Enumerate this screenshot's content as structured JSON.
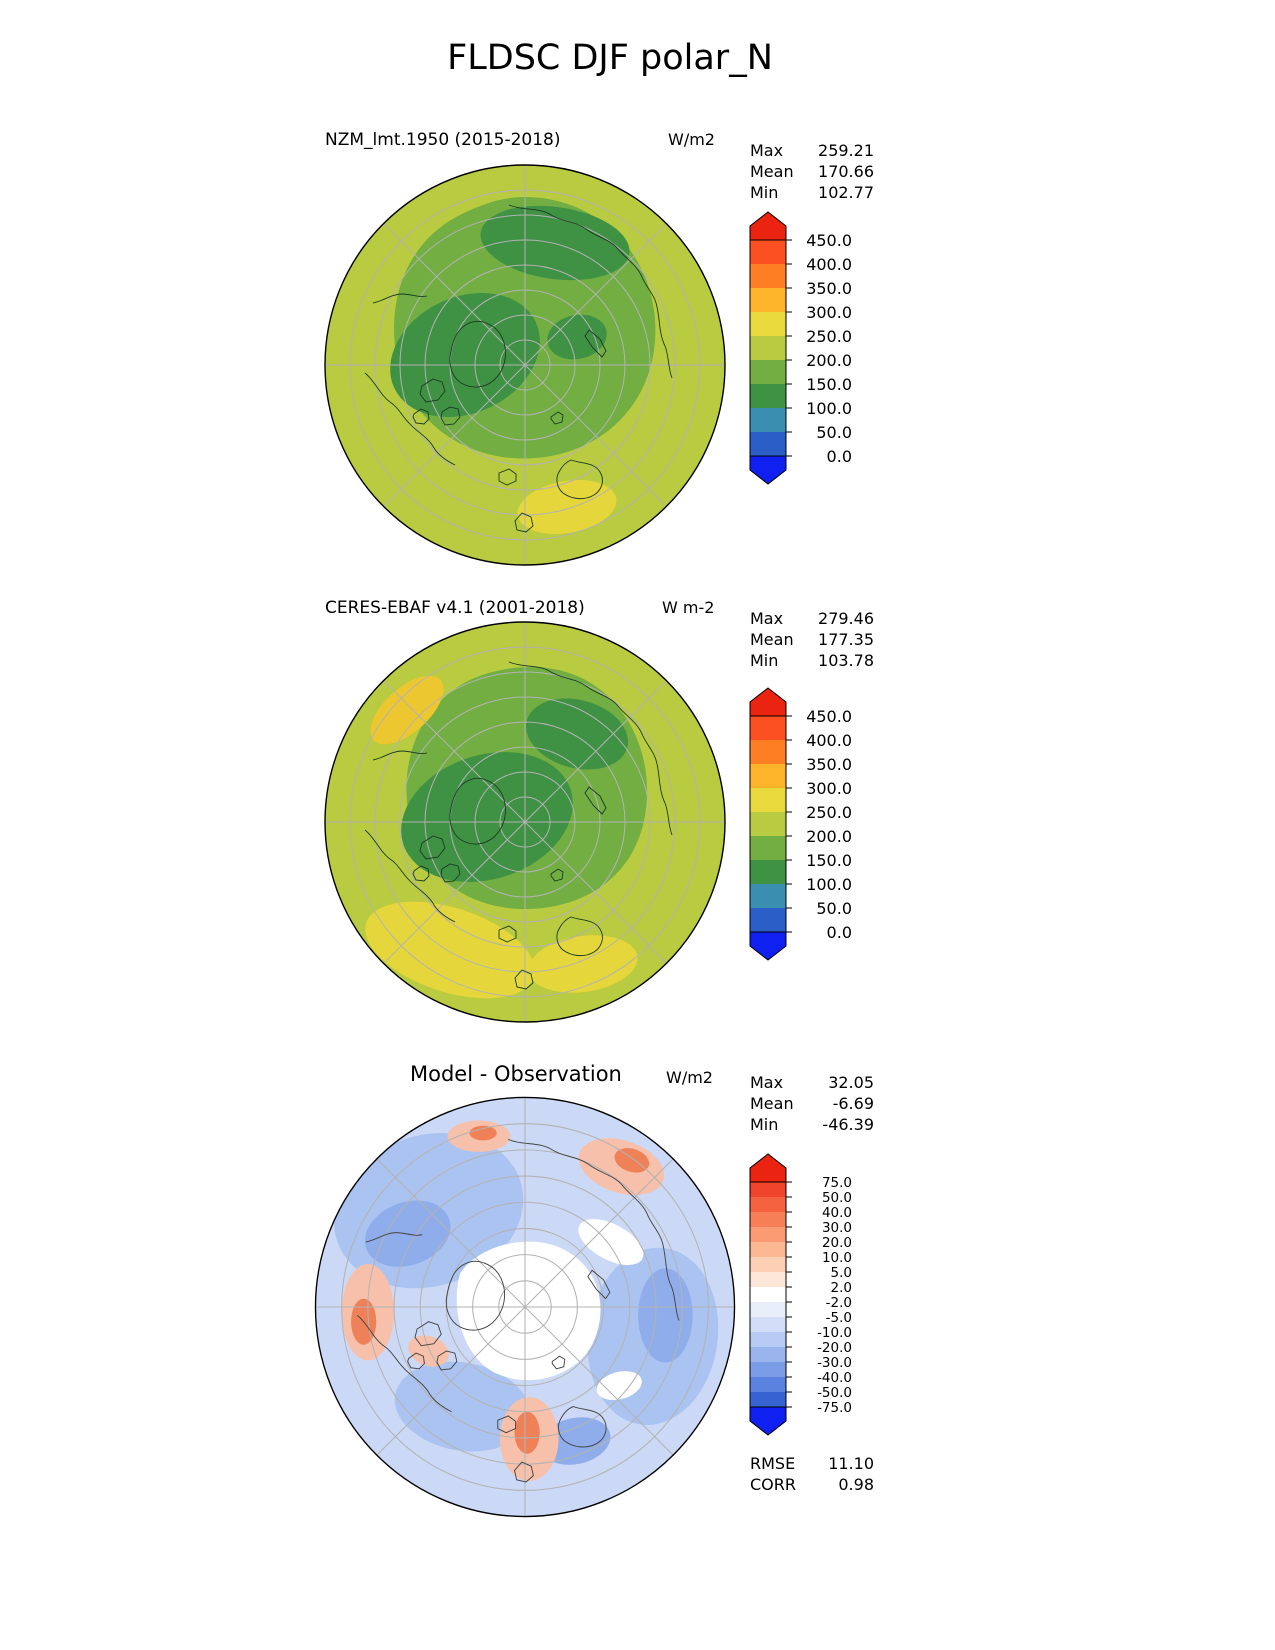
{
  "title": "FLDSC DJF polar_N",
  "panels": [
    {
      "subtitle": "NZM_lmt.1950 (2015-2018)",
      "units": "W/m2",
      "stats": [
        {
          "label": "Max",
          "value": "259.21"
        },
        {
          "label": "Mean",
          "value": "170.66"
        },
        {
          "label": "Min",
          "value": "102.77"
        }
      ],
      "colorbar": {
        "levels": [
          "450.0",
          "400.0",
          "350.0",
          "300.0",
          "250.0",
          "200.0",
          "150.0",
          "100.0",
          "50.0",
          "0.0"
        ],
        "segment_colors": [
          "#fc4f22",
          "#fd7e23",
          "#fdb32a",
          "#ead93c",
          "#b9cb40",
          "#72ae42",
          "#3f9144",
          "#3a8fb0",
          "#2b5fc7"
        ],
        "over_color": "#ea2411",
        "under_color": "#1020f0"
      }
    },
    {
      "subtitle": "CERES-EBAF v4.1 (2001-2018)",
      "units": "W m-2",
      "stats": [
        {
          "label": "Max",
          "value": "279.46"
        },
        {
          "label": "Mean",
          "value": "177.35"
        },
        {
          "label": "Min",
          "value": "103.78"
        }
      ],
      "colorbar": {
        "levels": [
          "450.0",
          "400.0",
          "350.0",
          "300.0",
          "250.0",
          "200.0",
          "150.0",
          "100.0",
          "50.0",
          "0.0"
        ],
        "segment_colors": [
          "#fc4f22",
          "#fd7e23",
          "#fdb32a",
          "#ead93c",
          "#b9cb40",
          "#72ae42",
          "#3f9144",
          "#3a8fb0",
          "#2b5fc7"
        ],
        "over_color": "#ea2411",
        "under_color": "#1020f0"
      }
    },
    {
      "subtitle": "Model - Observation",
      "units": "W/m2",
      "stats": [
        {
          "label": "Max",
          "value": "32.05"
        },
        {
          "label": "Mean",
          "value": "-6.69"
        },
        {
          "label": "Min",
          "value": "-46.39"
        }
      ],
      "colorbar": {
        "levels": [
          "75.0",
          "50.0",
          "40.0",
          "30.0",
          "20.0",
          "10.0",
          "5.0",
          "2.0",
          "-2.0",
          "-5.0",
          "-10.0",
          "-20.0",
          "-30.0",
          "-40.0",
          "-50.0",
          "-75.0"
        ],
        "segment_colors": [
          "#f1442c",
          "#f4623f",
          "#f77f58",
          "#fa9b74",
          "#fcb793",
          "#fdd0b6",
          "#fee6d8",
          "#ffffff",
          "#e9eefb",
          "#d2def8",
          "#b7cbf4",
          "#9ab5ee",
          "#7b9de7",
          "#5a82de",
          "#3763d2"
        ],
        "over_color": "#ea2411",
        "under_color": "#1020f0"
      },
      "metrics": [
        {
          "label": "RMSE",
          "value": "11.10"
        },
        {
          "label": "CORR",
          "value": "0.98"
        }
      ]
    }
  ],
  "chart_data": [
    {
      "type": "heatmap",
      "variable": "FLDSC",
      "season": "DJF",
      "projection": "polar_N",
      "title": "NZM_lmt.1950 (2015-2018)",
      "units": "W/m2",
      "stats": {
        "max": 259.21,
        "mean": 170.66,
        "min": 102.77
      },
      "contour_levels": [
        0.0,
        50.0,
        100.0,
        150.0,
        200.0,
        250.0,
        300.0,
        350.0,
        400.0,
        450.0
      ],
      "palette": [
        "#1020f0",
        "#2b5fc7",
        "#3a8fb0",
        "#3f9144",
        "#72ae42",
        "#b9cb40",
        "#ead93c",
        "#fdb32a",
        "#fd7e23",
        "#fc4f22",
        "#ea2411"
      ],
      "legend_position": "right"
    },
    {
      "type": "heatmap",
      "variable": "FLDSC",
      "season": "DJF",
      "projection": "polar_N",
      "title": "CERES-EBAF v4.1 (2001-2018)",
      "units": "W m-2",
      "stats": {
        "max": 279.46,
        "mean": 177.35,
        "min": 103.78
      },
      "contour_levels": [
        0.0,
        50.0,
        100.0,
        150.0,
        200.0,
        250.0,
        300.0,
        350.0,
        400.0,
        450.0
      ],
      "palette": [
        "#1020f0",
        "#2b5fc7",
        "#3a8fb0",
        "#3f9144",
        "#72ae42",
        "#b9cb40",
        "#ead93c",
        "#fdb32a",
        "#fd7e23",
        "#fc4f22",
        "#ea2411"
      ],
      "legend_position": "right"
    },
    {
      "type": "heatmap",
      "variable": "FLDSC difference",
      "season": "DJF",
      "projection": "polar_N",
      "title": "Model - Observation",
      "units": "W/m2",
      "stats": {
        "max": 32.05,
        "mean": -6.69,
        "min": -46.39,
        "rmse": 11.1,
        "corr": 0.98
      },
      "contour_levels": [
        -75.0,
        -50.0,
        -40.0,
        -30.0,
        -20.0,
        -10.0,
        -5.0,
        -2.0,
        2.0,
        5.0,
        10.0,
        20.0,
        30.0,
        40.0,
        50.0,
        75.0
      ],
      "palette": [
        "#1020f0",
        "#3763d2",
        "#5a82de",
        "#7b9de7",
        "#9ab5ee",
        "#b7cbf4",
        "#d2def8",
        "#e9eefb",
        "#ffffff",
        "#fee6d8",
        "#fdd0b6",
        "#fcb793",
        "#fa9b74",
        "#f77f58",
        "#f4623f",
        "#f1442c",
        "#ea2411"
      ],
      "legend_position": "right"
    }
  ]
}
